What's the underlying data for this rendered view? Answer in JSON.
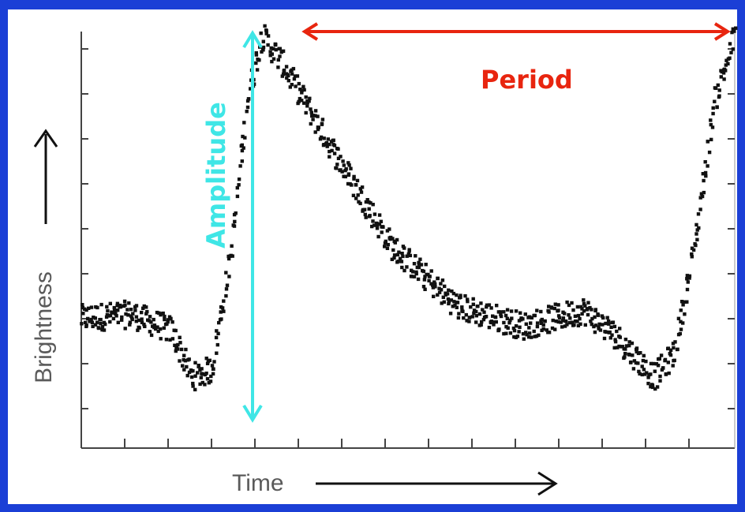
{
  "colors": {
    "background": "#1b3fd6",
    "panel": "#ffffff",
    "points": "#111111",
    "period_arrow": "#e8250f",
    "amplitude_arrow": "#3fe6e6",
    "axis": "#444444",
    "axis_label": "#5a5a5a"
  },
  "chart_data": {
    "type": "scatter",
    "title": "",
    "xlabel": "Time",
    "ylabel": "Brightness",
    "xlim": [
      0,
      1.3
    ],
    "ylim": [
      0,
      1
    ],
    "grid": false,
    "tick_labels": false,
    "annotations": [
      {
        "label": "Period",
        "kind": "horizontal-double-arrow",
        "from_x": 0.36,
        "to_x": 1.3
      },
      {
        "label": "Amplitude",
        "kind": "vertical-double-arrow",
        "at_x": 0.28,
        "from_y": 0.06,
        "to_y": 0.99
      }
    ],
    "light_curve": {
      "description_points": [
        [
          0.0,
          0.27
        ],
        [
          0.1,
          0.28
        ],
        [
          0.18,
          0.24
        ],
        [
          0.22,
          0.12
        ],
        [
          0.26,
          0.14
        ],
        [
          0.3,
          0.45
        ],
        [
          0.33,
          0.82
        ],
        [
          0.36,
          0.99
        ],
        [
          0.4,
          0.92
        ],
        [
          0.5,
          0.7
        ],
        [
          0.62,
          0.45
        ],
        [
          0.75,
          0.3
        ],
        [
          0.88,
          0.25
        ],
        [
          1.0,
          0.29
        ],
        [
          1.06,
          0.23
        ],
        [
          1.14,
          0.12
        ],
        [
          1.18,
          0.18
        ],
        [
          1.22,
          0.45
        ],
        [
          1.26,
          0.82
        ],
        [
          1.3,
          0.99
        ]
      ]
    }
  }
}
